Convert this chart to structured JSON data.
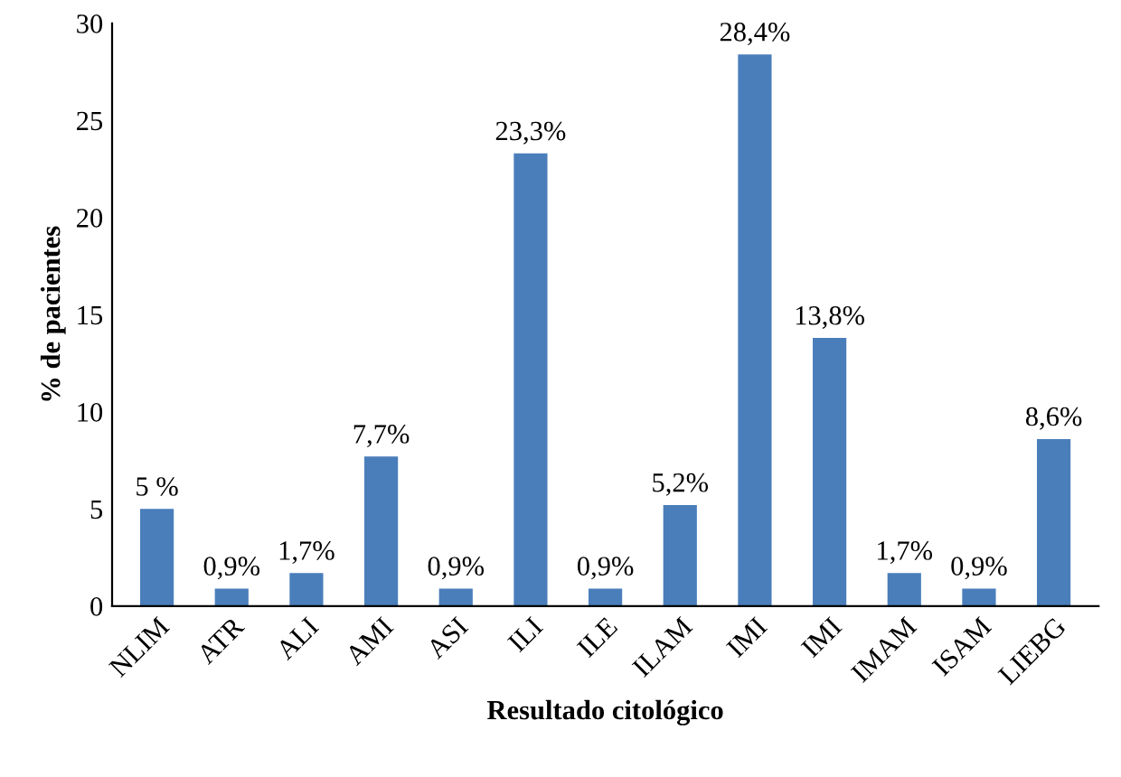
{
  "chart_data": {
    "type": "bar",
    "xlabel": "Resultado citológico",
    "ylabel": "% de pacientes",
    "categories": [
      "NLIM",
      "ATR",
      "ALI",
      "AMI",
      "ASI",
      "ILI",
      "ILE",
      "ILAM",
      "IMI",
      "IMI",
      "IMAM",
      "ISAM",
      "LIEBG"
    ],
    "values": [
      5,
      0.9,
      1.7,
      7.7,
      0.9,
      23.3,
      0.9,
      5.2,
      28.4,
      13.8,
      1.7,
      0.9,
      8.6
    ],
    "value_labels": [
      "5 %",
      "0,9%",
      "1,7%",
      "7,7%",
      "0,9%",
      "23,3%",
      "0,9%",
      "5,2%",
      "28,4%",
      "13,8%",
      "1,7%",
      "0,9%",
      "8,6%"
    ],
    "color": "#4a7ebb",
    "ylim": [
      0,
      30
    ],
    "yticks": [
      0,
      5,
      10,
      15,
      20,
      25,
      30
    ],
    "grid": false,
    "legend": false
  }
}
